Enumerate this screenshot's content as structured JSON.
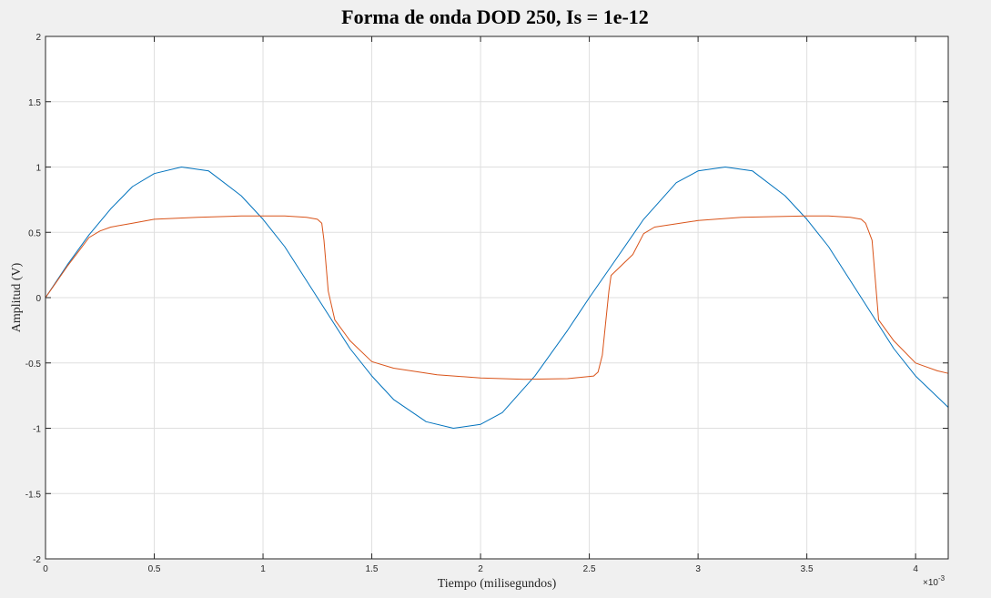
{
  "chart_data": {
    "type": "line",
    "title": "Forma de onda DOD 250, Is = 1e-12",
    "xlabel": "Tiempo (milisegundos)",
    "ylabel": "Amplitud (V)",
    "x_multiplier_base": "×10",
    "x_multiplier_exp": "-3",
    "xlim": [
      0,
      0.00415
    ],
    "ylim": [
      -2,
      2
    ],
    "grid": true,
    "x_ticks": [
      0,
      0.0005,
      0.001,
      0.0015,
      0.002,
      0.0025,
      0.003,
      0.0035,
      0.004
    ],
    "x_tick_labels": [
      "0",
      "0.5",
      "1",
      "1.5",
      "2",
      "2.5",
      "3",
      "3.5",
      "4"
    ],
    "y_ticks": [
      -2,
      -1.5,
      -1,
      -0.5,
      0,
      0.5,
      1,
      1.5,
      2
    ],
    "y_tick_labels": [
      "-2",
      "-1.5",
      "-1",
      "-0.5",
      "0",
      "0.5",
      "1",
      "1.5",
      "2"
    ],
    "series": [
      {
        "color": "#0072BD",
        "x": [
          0,
          0.0001,
          0.0002,
          0.0003,
          0.0004,
          0.0005,
          0.000625,
          0.00075,
          0.0009,
          0.001,
          0.0011,
          0.00125,
          0.0014,
          0.0015,
          0.0016,
          0.00175,
          0.001875,
          0.002,
          0.0021,
          0.00225,
          0.0024,
          0.0025,
          0.0026,
          0.00275,
          0.0029,
          0.003,
          0.003125,
          0.00325,
          0.0034,
          0.0035,
          0.0036,
          0.00375,
          0.0039,
          0.004,
          0.00415
        ],
        "y": [
          0,
          0.25,
          0.48,
          0.68,
          0.85,
          0.95,
          1.0,
          0.97,
          0.78,
          0.6,
          0.39,
          0.0,
          -0.39,
          -0.6,
          -0.78,
          -0.95,
          -1.0,
          -0.97,
          -0.88,
          -0.6,
          -0.25,
          0.0,
          0.24,
          0.6,
          0.88,
          0.97,
          1.0,
          0.97,
          0.78,
          0.6,
          0.39,
          0.0,
          -0.39,
          -0.6,
          -0.84
        ]
      },
      {
        "color": "#D95319",
        "x": [
          0,
          5e-05,
          0.0001,
          0.00015,
          0.0002,
          0.00025,
          0.0003,
          0.0004,
          0.0005,
          0.0007,
          0.0009,
          0.0011,
          0.0012,
          0.00125,
          0.00127,
          0.00128,
          0.0013,
          0.00133,
          0.0014,
          0.0015,
          0.0016,
          0.0018,
          0.002,
          0.0022,
          0.0024,
          0.00252,
          0.00254,
          0.00256,
          0.00259,
          0.0026,
          0.0027,
          0.00275,
          0.0028,
          0.003,
          0.0032,
          0.0035,
          0.0036,
          0.0037,
          0.00375,
          0.00377,
          0.0038,
          0.00383,
          0.0039,
          0.004,
          0.0041,
          0.00415
        ],
        "y": [
          0,
          0.12,
          0.24,
          0.35,
          0.46,
          0.51,
          0.54,
          0.57,
          0.6,
          0.615,
          0.625,
          0.625,
          0.615,
          0.6,
          0.57,
          0.44,
          0.05,
          -0.17,
          -0.33,
          -0.49,
          -0.54,
          -0.59,
          -0.615,
          -0.625,
          -0.62,
          -0.6,
          -0.57,
          -0.44,
          0.05,
          0.17,
          0.33,
          0.49,
          0.54,
          0.59,
          0.615,
          0.625,
          0.625,
          0.615,
          0.6,
          0.57,
          0.44,
          -0.17,
          -0.33,
          -0.5,
          -0.56,
          -0.58
        ]
      }
    ]
  }
}
